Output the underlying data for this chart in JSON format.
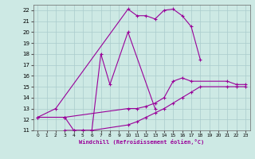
{
  "xlabel": "Windchill (Refroidissement éolien,°C)",
  "xlim": [
    -0.5,
    23.5
  ],
  "ylim": [
    11,
    22.5
  ],
  "xticks": [
    0,
    1,
    2,
    3,
    4,
    5,
    6,
    7,
    8,
    9,
    10,
    11,
    12,
    13,
    14,
    15,
    16,
    17,
    18,
    19,
    20,
    21,
    22,
    23
  ],
  "yticks": [
    11,
    12,
    13,
    14,
    15,
    16,
    17,
    18,
    19,
    20,
    21,
    22
  ],
  "bg_color": "#cde9e4",
  "line_color": "#990099",
  "grid_color": "#aacccc",
  "line1_x": [
    0,
    2,
    10,
    11,
    12,
    13,
    14,
    15,
    16,
    17,
    18
  ],
  "line1_y": [
    12.2,
    13.0,
    22.1,
    21.5,
    21.5,
    21.2,
    22.0,
    22.1,
    21.5,
    20.5,
    17.5
  ],
  "line2_x": [
    3,
    4,
    5,
    6,
    7,
    8,
    10,
    13
  ],
  "line2_y": [
    12.2,
    11.0,
    11.0,
    11.0,
    18.0,
    15.2,
    20.0,
    13.0
  ],
  "line3_x": [
    0,
    3,
    10,
    11,
    12,
    13,
    14,
    15,
    16,
    17,
    21,
    22,
    23
  ],
  "line3_y": [
    12.2,
    12.2,
    13.0,
    13.0,
    13.2,
    13.5,
    14.0,
    15.5,
    15.8,
    15.5,
    15.5,
    15.2,
    15.2
  ],
  "line4_x": [
    3,
    4,
    5,
    6,
    10,
    11,
    12,
    13,
    14,
    15,
    16,
    17,
    18,
    21,
    22,
    23
  ],
  "line4_y": [
    11.0,
    11.0,
    11.0,
    11.0,
    11.5,
    11.8,
    12.2,
    12.6,
    13.0,
    13.5,
    14.0,
    14.5,
    15.0,
    15.0,
    15.0,
    15.0
  ]
}
